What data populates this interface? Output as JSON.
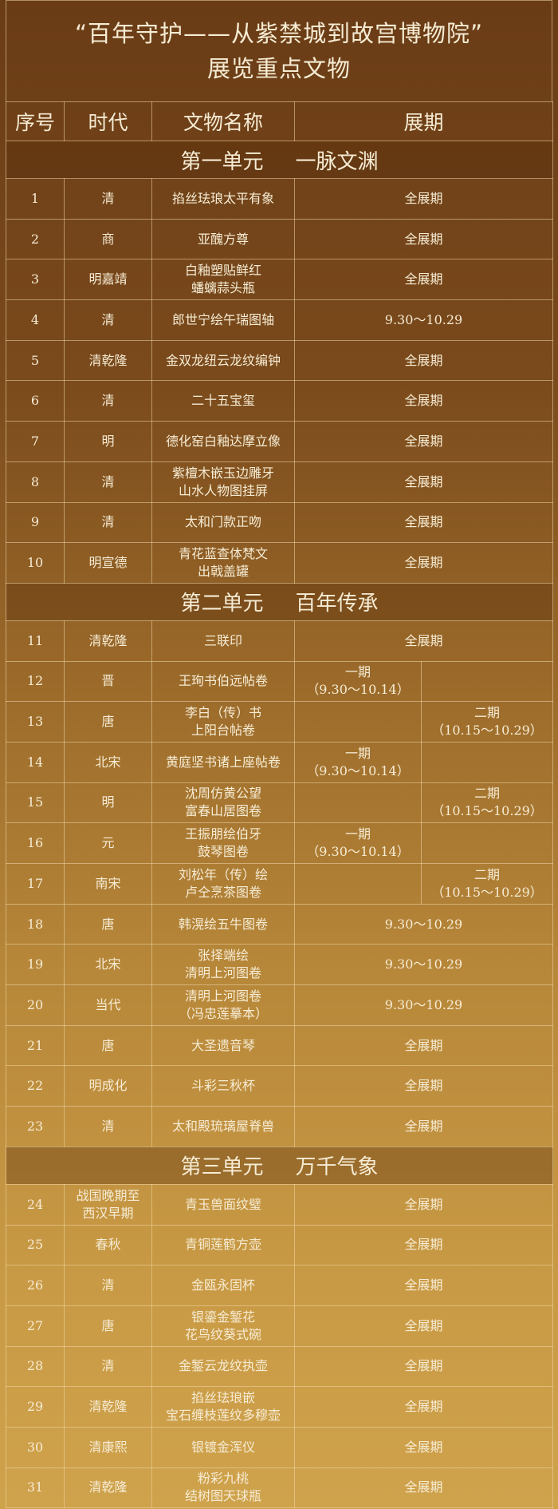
{
  "title": {
    "line1": "“百年守护——从紫禁城到故宫博物院”",
    "line2": "展览重点文物"
  },
  "headers": [
    "序号",
    "时代",
    "文物名称",
    "展期"
  ],
  "sections": [
    {
      "unit": "第一单元",
      "name": "一脉文渊",
      "rows": [
        {
          "no": "1",
          "era": [
            "清"
          ],
          "name": [
            "掐丝珐琅太平有象"
          ],
          "period": "全展期"
        },
        {
          "no": "2",
          "era": [
            "商"
          ],
          "name": [
            "亚醜方尊"
          ],
          "period": "全展期"
        },
        {
          "no": "3",
          "era": [
            "明嘉靖"
          ],
          "name": [
            "白釉塑贴鲜红",
            "蟠螭蒜头瓶"
          ],
          "period": "全展期"
        },
        {
          "no": "4",
          "era": [
            "清"
          ],
          "name": [
            "郎世宁绘午瑞图轴"
          ],
          "period": "9.30～10.29"
        },
        {
          "no": "5",
          "era": [
            "清乾隆"
          ],
          "name": [
            "金双龙纽云龙纹编钟"
          ],
          "period": "全展期"
        },
        {
          "no": "6",
          "era": [
            "清"
          ],
          "name": [
            "二十五宝玺"
          ],
          "period": "全展期"
        },
        {
          "no": "7",
          "era": [
            "明"
          ],
          "name": [
            "德化窑白釉达摩立像"
          ],
          "period": "全展期"
        },
        {
          "no": "8",
          "era": [
            "清"
          ],
          "name": [
            "紫檀木嵌玉边雕牙",
            "山水人物图挂屏"
          ],
          "period": "全展期"
        },
        {
          "no": "9",
          "era": [
            "清"
          ],
          "name": [
            "太和门款正吻"
          ],
          "period": "全展期"
        },
        {
          "no": "10",
          "era": [
            "明宣德"
          ],
          "name": [
            "青花蓝查体梵文",
            "出戟盖罐"
          ],
          "period": "全展期"
        }
      ]
    },
    {
      "unit": "第二单元",
      "name": "百年传承",
      "rows": [
        {
          "no": "11",
          "era": [
            "清乾隆"
          ],
          "name": [
            "三联印"
          ],
          "period": "全展期"
        },
        {
          "no": "12",
          "era": [
            "晋"
          ],
          "name": [
            "王珣书伯远帖卷"
          ],
          "phase1": [
            "一期",
            "（9.30～10.14）"
          ],
          "phase2": []
        },
        {
          "no": "13",
          "era": [
            "唐"
          ],
          "name": [
            "李白（传）书",
            "上阳台帖卷"
          ],
          "phase1": [],
          "phase2": [
            "二期",
            "（10.15～10.29）"
          ]
        },
        {
          "no": "14",
          "era": [
            "北宋"
          ],
          "name": [
            "黄庭坚书诸上座帖卷"
          ],
          "phase1": [
            "一期",
            "（9.30～10.14）"
          ],
          "phase2": []
        },
        {
          "no": "15",
          "era": [
            "明"
          ],
          "name": [
            "沈周仿黄公望",
            "富春山居图卷"
          ],
          "phase1": [],
          "phase2": [
            "二期",
            "（10.15～10.29）"
          ]
        },
        {
          "no": "16",
          "era": [
            "元"
          ],
          "name": [
            "王振朋绘伯牙",
            "鼓琴图卷"
          ],
          "phase1": [
            "一期",
            "（9.30～10.14）"
          ],
          "phase2": []
        },
        {
          "no": "17",
          "era": [
            "南宋"
          ],
          "name": [
            "刘松年（传）绘",
            "卢仝烹茶图卷"
          ],
          "phase1": [],
          "phase2": [
            "二期",
            "（10.15～10.29）"
          ]
        },
        {
          "no": "18",
          "era": [
            "唐"
          ],
          "name": [
            "韩滉绘五牛图卷"
          ],
          "period": "9.30～10.29"
        },
        {
          "no": "19",
          "era": [
            "北宋"
          ],
          "name": [
            "张择端绘",
            "清明上河图卷"
          ],
          "period": "9.30～10.29"
        },
        {
          "no": "20",
          "era": [
            "当代"
          ],
          "name": [
            "清明上河图卷",
            "（冯忠莲摹本）"
          ],
          "period": "9.30～10.29"
        },
        {
          "no": "21",
          "era": [
            "唐"
          ],
          "name": [
            "大圣遗音琴"
          ],
          "period": "全展期"
        },
        {
          "no": "22",
          "era": [
            "明成化"
          ],
          "name": [
            "斗彩三秋杯"
          ],
          "period": "全展期"
        },
        {
          "no": "23",
          "era": [
            "清"
          ],
          "name": [
            "太和殿琉璃屋脊兽"
          ],
          "period": "全展期"
        }
      ]
    },
    {
      "unit": "第三单元",
      "name": "万千气象",
      "rows": [
        {
          "no": "24",
          "era": [
            "战国晚期至",
            "西汉早期"
          ],
          "name": [
            "青玉兽面纹璧"
          ],
          "period": "全展期"
        },
        {
          "no": "25",
          "era": [
            "春秋"
          ],
          "name": [
            "青铜莲鹤方壶"
          ],
          "period": "全展期"
        },
        {
          "no": "26",
          "era": [
            "清"
          ],
          "name": [
            "金瓯永固杯"
          ],
          "period": "全展期"
        },
        {
          "no": "27",
          "era": [
            "唐"
          ],
          "name": [
            "银鎏金錾花",
            "花鸟纹葵式碗"
          ],
          "period": "全展期"
        },
        {
          "no": "28",
          "era": [
            "清"
          ],
          "name": [
            "金錾云龙纹执壶"
          ],
          "period": "全展期"
        },
        {
          "no": "29",
          "era": [
            "清乾隆"
          ],
          "name": [
            "掐丝珐琅嵌",
            "宝石缠枝莲纹多穆壶"
          ],
          "period": "全展期"
        },
        {
          "no": "30",
          "era": [
            "清康熙"
          ],
          "name": [
            "银镀金浑仪"
          ],
          "period": "全展期"
        },
        {
          "no": "31",
          "era": [
            "清乾隆"
          ],
          "name": [
            "粉彩九桃",
            "结树图天球瓶"
          ],
          "period": "全展期"
        }
      ]
    }
  ]
}
